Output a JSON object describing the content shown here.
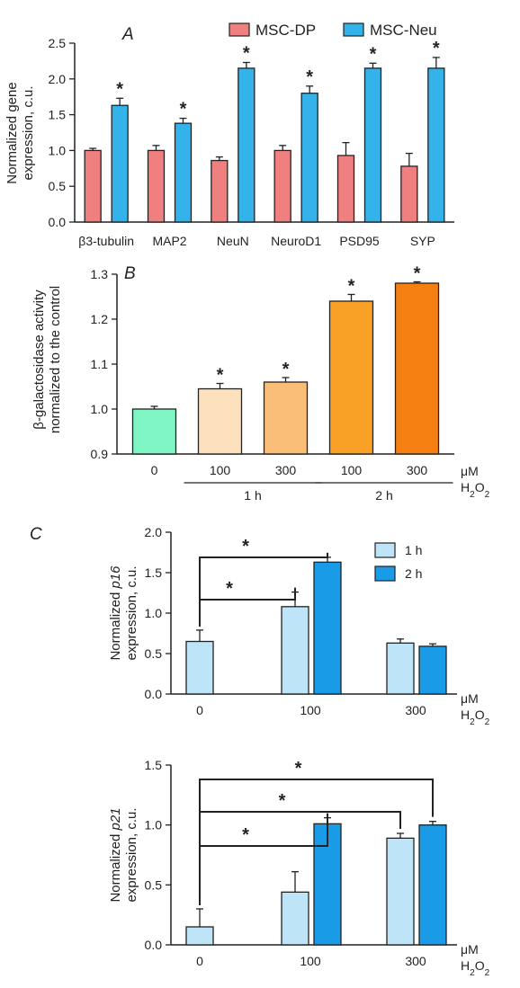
{
  "figure": {
    "chart_data": [
      {
        "panel": "A",
        "type": "bar",
        "ylabel": "Normalized gene expression, c.u.",
        "ylim": [
          0,
          2.5
        ],
        "yticks": [
          "0.0",
          "0.5",
          "1.0",
          "1.5",
          "2.0",
          "2.5"
        ],
        "categories": [
          "β3-tubulin",
          "MAP2",
          "NeuN",
          "NeuroD1",
          "PSD95",
          "SYP"
        ],
        "series": [
          {
            "name": "MSC-DP",
            "color": "#f08080",
            "values": [
              1.0,
              1.0,
              0.86,
              1.0,
              0.93,
              0.78
            ],
            "errors": [
              0.03,
              0.07,
              0.05,
              0.07,
              0.18,
              0.18
            ]
          },
          {
            "name": "MSC-Neu",
            "color": "#33b3ea",
            "values": [
              1.63,
              1.38,
              2.15,
              1.8,
              2.15,
              2.15
            ],
            "errors": [
              0.1,
              0.07,
              0.08,
              0.1,
              0.07,
              0.15
            ],
            "significance": "*"
          }
        ]
      },
      {
        "panel": "B",
        "type": "bar",
        "ylabel": "β-galactosidase activity normalized to the control",
        "ylim": [
          0.9,
          1.3
        ],
        "yticks": [
          "0.9",
          "1.0",
          "1.1",
          "1.2",
          "1.3"
        ],
        "categories": [
          "0",
          "100",
          "300",
          "100",
          "300"
        ],
        "values": [
          1.0,
          1.045,
          1.06,
          1.24,
          1.28
        ],
        "errors": [
          0.006,
          0.012,
          0.01,
          0.015,
          0.003
        ],
        "colors": [
          "#7ef5c2",
          "#fde1bd",
          "#fbbe78",
          "#f8a126",
          "#f67f12"
        ],
        "significance": [
          "",
          "*",
          "*",
          "*",
          "*"
        ],
        "groups": [
          {
            "label": "1 h",
            "members": [
              1,
              2
            ]
          },
          {
            "label": "2 h",
            "members": [
              3,
              4
            ]
          }
        ],
        "x_unit": "μM",
        "x_unit2": "H2O2"
      },
      {
        "panel": "C",
        "type": "bar",
        "ylabel": "Normalized p16 expression, c.u.",
        "ylabel_italic": "p16",
        "ylim": [
          0,
          2.0
        ],
        "yticks": [
          "0.0",
          "0.5",
          "1.0",
          "1.5",
          "2.0"
        ],
        "categories": [
          "0",
          "100",
          "300"
        ],
        "series": [
          {
            "name": "1 h",
            "color": "#bde4f7",
            "values": [
              0.65,
              1.08,
              0.63
            ],
            "errors": [
              0.14,
              0.18,
              0.05
            ]
          },
          {
            "name": "2 h",
            "color": "#1a9be8",
            "values": [
              null,
              1.63,
              0.59
            ],
            "errors": [
              null,
              0.06,
              0.03
            ]
          }
        ],
        "significance_brackets": [
          {
            "from": "0",
            "to": "100 / 1 h",
            "label": "*"
          },
          {
            "from": "0",
            "to": "100 / 2 h",
            "label": "*"
          }
        ],
        "x_unit": "μM",
        "x_unit2": "H2O2"
      },
      {
        "panel": "",
        "type": "bar",
        "ylabel": "Normalized p21 expression, c.u.",
        "ylabel_italic": "p21",
        "ylim": [
          0,
          1.5
        ],
        "yticks": [
          "0.0",
          "0.5",
          "1.0",
          "1.5"
        ],
        "categories": [
          "0",
          "100",
          "300"
        ],
        "series": [
          {
            "name": "1 h",
            "color": "#bde4f7",
            "values": [
              0.15,
              0.44,
              0.89
            ],
            "errors": [
              0.15,
              0.17,
              0.04
            ]
          },
          {
            "name": "2 h",
            "color": "#1a9be8",
            "values": [
              null,
              1.01,
              1.0
            ],
            "errors": [
              null,
              0.05,
              0.03
            ]
          }
        ],
        "significance_brackets": [
          {
            "from": "0",
            "to": "100 / 2 h",
            "label": "*"
          },
          {
            "from": "0",
            "to": "300 / 1 h",
            "label": "*"
          },
          {
            "from": "0",
            "to": "300 / 2 h",
            "label": "*"
          }
        ],
        "x_unit": "μM",
        "x_unit2": "H2O2"
      }
    ]
  }
}
